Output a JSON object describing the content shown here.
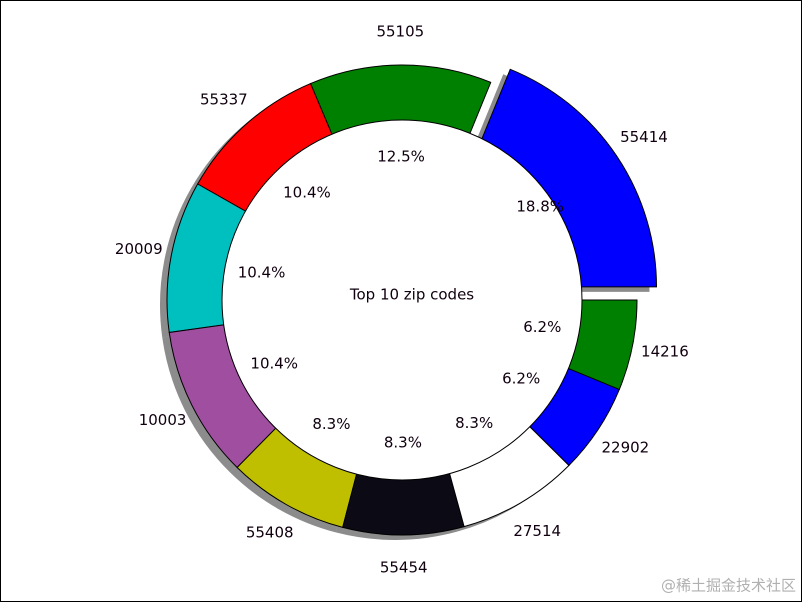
{
  "chart_data": {
    "type": "pie",
    "center_label": "Top 10 zip codes",
    "categories": [
      "55414",
      "55105",
      "55337",
      "20009",
      "10003",
      "55408",
      "55454",
      "27514",
      "22902",
      "14216"
    ],
    "values": [
      18.8,
      12.5,
      10.4,
      10.4,
      10.4,
      8.3,
      8.3,
      8.3,
      6.2,
      6.2
    ],
    "value_labels": [
      "18.8%",
      "12.5%",
      "10.4%",
      "10.4%",
      "10.4%",
      "8.3%",
      "8.3%",
      "8.3%",
      "6.2%",
      "6.2%"
    ],
    "colors": [
      "#0000ff",
      "#008000",
      "#ff0000",
      "#00bfbf",
      "#a04ea0",
      "#bfbf00",
      "#0c0a14",
      "#ffffff",
      "#0000ff",
      "#008000"
    ],
    "explode": [
      0.1,
      0,
      0,
      0,
      0,
      0,
      0,
      0,
      0,
      0
    ],
    "shadow": true,
    "watermark": "@稀土掘金技术社区"
  }
}
